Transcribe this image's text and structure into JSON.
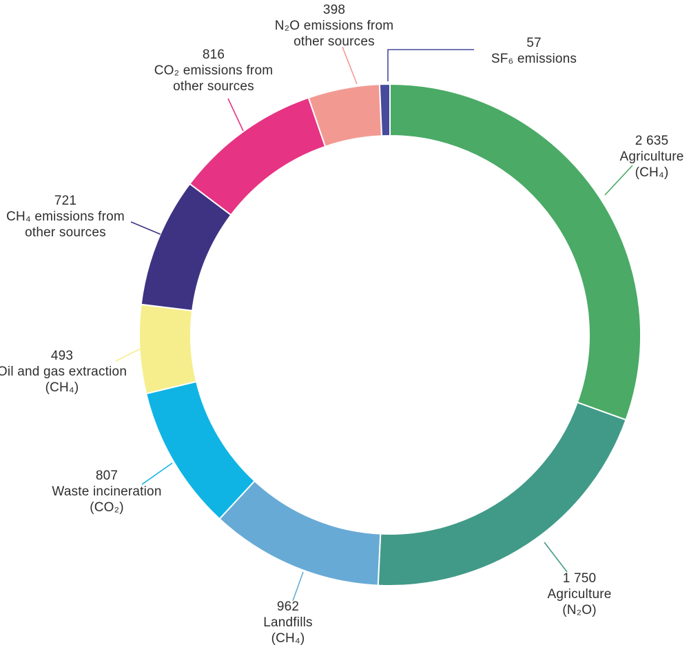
{
  "chart_data": {
    "type": "pie",
    "variant": "donut",
    "title": "",
    "total": 8639,
    "start_angle_deg": 0,
    "direction": "clockwise",
    "legend_position": "callout-labels",
    "grid": false,
    "segments": [
      {
        "id": "agriculture-ch4",
        "value": 2635,
        "display_value": "2 635",
        "label_lines": [
          "2 635",
          "Agriculture",
          "(CH₄)"
        ],
        "color": "#4aaa66"
      },
      {
        "id": "agriculture-n2o",
        "value": 1750,
        "display_value": "1 750",
        "label_lines": [
          "1 750",
          "Agriculture",
          "(N₂O)"
        ],
        "color": "#419a88"
      },
      {
        "id": "landfills-ch4",
        "value": 962,
        "display_value": "962",
        "label_lines": [
          "962",
          "Landfills",
          "(CH₄)"
        ],
        "color": "#68aad6"
      },
      {
        "id": "waste-incineration-co2",
        "value": 807,
        "display_value": "807",
        "label_lines": [
          "807",
          "Waste incineration",
          "(CO₂)"
        ],
        "color": "#0fb4e4"
      },
      {
        "id": "oil-and-gas-ch4",
        "value": 493,
        "display_value": "493",
        "label_lines": [
          "493",
          "Oil and gas extraction",
          "(CH₄)"
        ],
        "color": "#f6ee8d"
      },
      {
        "id": "ch4-other-sources",
        "value": 721,
        "display_value": "721",
        "label_lines": [
          "721",
          "CH₄ emissions from",
          "other sources"
        ],
        "color": "#3d3382"
      },
      {
        "id": "co2-other-sources",
        "value": 816,
        "display_value": "816",
        "label_lines": [
          "816",
          "CO₂ emissions from",
          "other sources"
        ],
        "color": "#e73383"
      },
      {
        "id": "n2o-other-sources",
        "value": 398,
        "display_value": "398",
        "label_lines": [
          "398",
          "N₂O emissions from",
          "other sources"
        ],
        "color": "#f29a92"
      },
      {
        "id": "sf6-emissions",
        "value": 57,
        "display_value": "57",
        "label_lines": [
          "57",
          "SF₆ emissions"
        ],
        "color": "#474b9b"
      }
    ]
  }
}
